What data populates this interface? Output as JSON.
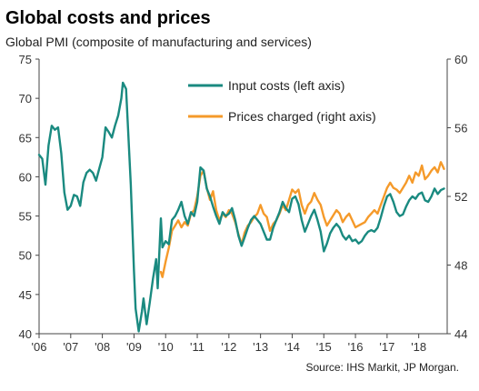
{
  "chart_data": {
    "type": "line",
    "title": "Global costs and prices",
    "subtitle": "Global PMI (composite of manufacturing and services)",
    "source": "Source: IHS Markit, JP Morgan.",
    "x_range": [
      2006.0,
      2018.9
    ],
    "x_tick_labels": [
      {
        "year": 2006,
        "label": "'06"
      },
      {
        "year": 2007,
        "label": "'07"
      },
      {
        "year": 2008,
        "label": "'08"
      },
      {
        "year": 2009,
        "label": "'09"
      },
      {
        "year": 2010,
        "label": "'10"
      },
      {
        "year": 2011,
        "label": "'11"
      },
      {
        "year": 2012,
        "label": "'12"
      },
      {
        "year": 2013,
        "label": "'13"
      },
      {
        "year": 2014,
        "label": "'14"
      },
      {
        "year": 2015,
        "label": "'15"
      },
      {
        "year": 2016,
        "label": "'16"
      },
      {
        "year": 2017,
        "label": "'17"
      },
      {
        "year": 2018,
        "label": "'18"
      }
    ],
    "y_left": {
      "range": [
        40,
        75
      ],
      "ticks": [
        40,
        45,
        50,
        55,
        60,
        65,
        70,
        75
      ],
      "tick_labels": [
        "40",
        "45",
        "50",
        "55",
        "60",
        "65",
        "70",
        "75"
      ]
    },
    "y_right": {
      "range": [
        44,
        60
      ],
      "ticks": [
        44,
        48,
        52,
        56,
        60
      ],
      "tick_labels": [
        "44",
        "48",
        "52",
        "56",
        "60"
      ]
    },
    "grid": false,
    "legend_position": "top-right",
    "series": [
      {
        "name": "Input costs (left axis)",
        "axis": "left",
        "color": "#1a8a80",
        "points": [
          [
            2006.0,
            62.8
          ],
          [
            2006.1,
            62.3
          ],
          [
            2006.2,
            59.0
          ],
          [
            2006.3,
            64.0
          ],
          [
            2006.4,
            66.5
          ],
          [
            2006.5,
            66.0
          ],
          [
            2006.6,
            66.3
          ],
          [
            2006.7,
            63.0
          ],
          [
            2006.8,
            58.0
          ],
          [
            2006.9,
            55.8
          ],
          [
            2007.0,
            56.3
          ],
          [
            2007.1,
            57.7
          ],
          [
            2007.2,
            57.5
          ],
          [
            2007.3,
            56.3
          ],
          [
            2007.4,
            59.3
          ],
          [
            2007.5,
            60.5
          ],
          [
            2007.6,
            60.9
          ],
          [
            2007.7,
            60.5
          ],
          [
            2007.8,
            59.5
          ],
          [
            2007.9,
            61.0
          ],
          [
            2008.0,
            62.5
          ],
          [
            2008.1,
            66.3
          ],
          [
            2008.2,
            65.7
          ],
          [
            2008.3,
            65.0
          ],
          [
            2008.4,
            66.5
          ],
          [
            2008.5,
            67.8
          ],
          [
            2008.6,
            70.0
          ],
          [
            2008.65,
            72.0
          ],
          [
            2008.75,
            71.2
          ],
          [
            2008.8,
            67.0
          ],
          [
            2008.9,
            59.0
          ],
          [
            2009.0,
            48.0
          ],
          [
            2009.05,
            43.2
          ],
          [
            2009.15,
            40.3
          ],
          [
            2009.25,
            42.8
          ],
          [
            2009.3,
            44.5
          ],
          [
            2009.4,
            41.2
          ],
          [
            2009.5,
            44.0
          ],
          [
            2009.6,
            47.0
          ],
          [
            2009.7,
            49.5
          ],
          [
            2009.75,
            45.8
          ],
          [
            2009.85,
            54.7
          ],
          [
            2009.9,
            51.0
          ],
          [
            2010.0,
            51.8
          ],
          [
            2010.1,
            51.4
          ],
          [
            2010.2,
            54.5
          ],
          [
            2010.3,
            55.0
          ],
          [
            2010.4,
            55.8
          ],
          [
            2010.5,
            56.8
          ],
          [
            2010.6,
            55.0
          ],
          [
            2010.7,
            54.0
          ],
          [
            2010.8,
            55.5
          ],
          [
            2010.9,
            55.0
          ],
          [
            2011.0,
            56.8
          ],
          [
            2011.1,
            61.2
          ],
          [
            2011.2,
            60.8
          ],
          [
            2011.3,
            58.5
          ],
          [
            2011.4,
            57.5
          ],
          [
            2011.5,
            56.2
          ],
          [
            2011.6,
            55.0
          ],
          [
            2011.7,
            54.0
          ],
          [
            2011.8,
            55.5
          ],
          [
            2011.9,
            55.0
          ],
          [
            2012.0,
            55.3
          ],
          [
            2012.1,
            56.0
          ],
          [
            2012.2,
            54.5
          ],
          [
            2012.3,
            52.5
          ],
          [
            2012.4,
            51.2
          ],
          [
            2012.5,
            52.3
          ],
          [
            2012.6,
            53.5
          ],
          [
            2012.7,
            54.5
          ],
          [
            2012.8,
            55.0
          ],
          [
            2012.9,
            54.5
          ],
          [
            2013.0,
            54.0
          ],
          [
            2013.1,
            53.0
          ],
          [
            2013.2,
            52.0
          ],
          [
            2013.3,
            52.0
          ],
          [
            2013.4,
            53.5
          ],
          [
            2013.5,
            54.5
          ],
          [
            2013.6,
            55.5
          ],
          [
            2013.7,
            56.8
          ],
          [
            2013.8,
            56.0
          ],
          [
            2013.9,
            55.5
          ],
          [
            2014.0,
            57.2
          ],
          [
            2014.1,
            57.5
          ],
          [
            2014.2,
            56.5
          ],
          [
            2014.3,
            54.5
          ],
          [
            2014.4,
            53.0
          ],
          [
            2014.5,
            54.0
          ],
          [
            2014.6,
            55.0
          ],
          [
            2014.7,
            55.8
          ],
          [
            2014.8,
            54.5
          ],
          [
            2014.9,
            53.0
          ],
          [
            2015.0,
            50.5
          ],
          [
            2015.1,
            51.5
          ],
          [
            2015.2,
            52.8
          ],
          [
            2015.3,
            53.5
          ],
          [
            2015.4,
            54.0
          ],
          [
            2015.5,
            53.5
          ],
          [
            2015.6,
            52.5
          ],
          [
            2015.7,
            52.0
          ],
          [
            2015.8,
            52.5
          ],
          [
            2015.9,
            51.8
          ],
          [
            2016.0,
            52.0
          ],
          [
            2016.1,
            51.5
          ],
          [
            2016.2,
            51.8
          ],
          [
            2016.3,
            52.5
          ],
          [
            2016.4,
            53.0
          ],
          [
            2016.5,
            53.2
          ],
          [
            2016.6,
            53.0
          ],
          [
            2016.7,
            53.5
          ],
          [
            2016.8,
            54.8
          ],
          [
            2016.9,
            56.3
          ],
          [
            2017.0,
            57.5
          ],
          [
            2017.1,
            57.8
          ],
          [
            2017.2,
            56.8
          ],
          [
            2017.3,
            55.5
          ],
          [
            2017.4,
            55.0
          ],
          [
            2017.5,
            55.2
          ],
          [
            2017.6,
            56.2
          ],
          [
            2017.7,
            57.0
          ],
          [
            2017.8,
            57.5
          ],
          [
            2017.9,
            57.2
          ],
          [
            2018.0,
            57.8
          ],
          [
            2018.1,
            58.0
          ],
          [
            2018.2,
            57.0
          ],
          [
            2018.3,
            56.8
          ],
          [
            2018.4,
            57.5
          ],
          [
            2018.5,
            58.5
          ],
          [
            2018.6,
            57.8
          ],
          [
            2018.7,
            58.3
          ],
          [
            2018.8,
            58.5
          ]
        ]
      },
      {
        "name": "Prices charged (right axis)",
        "axis": "right",
        "color": "#f59a2a",
        "points": [
          [
            2009.85,
            47.6
          ],
          [
            2009.9,
            47.3
          ],
          [
            2010.0,
            48.2
          ],
          [
            2010.1,
            49.0
          ],
          [
            2010.2,
            50.0
          ],
          [
            2010.3,
            50.3
          ],
          [
            2010.4,
            50.6
          ],
          [
            2010.5,
            50.2
          ],
          [
            2010.6,
            50.5
          ],
          [
            2010.7,
            50.3
          ],
          [
            2010.8,
            51.0
          ],
          [
            2010.9,
            51.2
          ],
          [
            2011.0,
            52.0
          ],
          [
            2011.1,
            53.2
          ],
          [
            2011.2,
            53.5
          ],
          [
            2011.3,
            52.5
          ],
          [
            2011.4,
            51.8
          ],
          [
            2011.5,
            52.3
          ],
          [
            2011.6,
            51.2
          ],
          [
            2011.7,
            50.6
          ],
          [
            2011.8,
            51.0
          ],
          [
            2011.9,
            50.8
          ],
          [
            2012.0,
            51.2
          ],
          [
            2012.1,
            51.0
          ],
          [
            2012.2,
            50.5
          ],
          [
            2012.3,
            49.8
          ],
          [
            2012.4,
            49.2
          ],
          [
            2012.5,
            49.9
          ],
          [
            2012.6,
            50.3
          ],
          [
            2012.7,
            50.5
          ],
          [
            2012.8,
            50.8
          ],
          [
            2012.9,
            51.0
          ],
          [
            2013.0,
            51.5
          ],
          [
            2013.1,
            51.0
          ],
          [
            2013.2,
            50.8
          ],
          [
            2013.3,
            50.0
          ],
          [
            2013.4,
            50.4
          ],
          [
            2013.5,
            50.6
          ],
          [
            2013.6,
            51.0
          ],
          [
            2013.7,
            51.5
          ],
          [
            2013.8,
            51.2
          ],
          [
            2013.9,
            51.8
          ],
          [
            2014.0,
            52.4
          ],
          [
            2014.1,
            52.2
          ],
          [
            2014.2,
            52.4
          ],
          [
            2014.3,
            51.5
          ],
          [
            2014.4,
            51.0
          ],
          [
            2014.5,
            51.5
          ],
          [
            2014.6,
            51.7
          ],
          [
            2014.7,
            52.2
          ],
          [
            2014.8,
            51.8
          ],
          [
            2014.9,
            51.5
          ],
          [
            2015.0,
            50.8
          ],
          [
            2015.1,
            50.3
          ],
          [
            2015.2,
            50.6
          ],
          [
            2015.3,
            50.9
          ],
          [
            2015.4,
            51.2
          ],
          [
            2015.5,
            51.0
          ],
          [
            2015.6,
            50.5
          ],
          [
            2015.7,
            50.8
          ],
          [
            2015.8,
            51.0
          ],
          [
            2015.9,
            50.6
          ],
          [
            2016.0,
            50.2
          ],
          [
            2016.1,
            50.3
          ],
          [
            2016.2,
            50.4
          ],
          [
            2016.3,
            50.5
          ],
          [
            2016.4,
            50.8
          ],
          [
            2016.5,
            51.0
          ],
          [
            2016.6,
            51.2
          ],
          [
            2016.7,
            51.0
          ],
          [
            2016.8,
            51.5
          ],
          [
            2016.9,
            52.0
          ],
          [
            2017.0,
            52.5
          ],
          [
            2017.1,
            52.8
          ],
          [
            2017.2,
            52.5
          ],
          [
            2017.3,
            52.4
          ],
          [
            2017.4,
            52.2
          ],
          [
            2017.5,
            52.5
          ],
          [
            2017.6,
            52.8
          ],
          [
            2017.7,
            53.2
          ],
          [
            2017.8,
            52.8
          ],
          [
            2017.9,
            53.4
          ],
          [
            2018.0,
            53.2
          ],
          [
            2018.1,
            53.8
          ],
          [
            2018.2,
            53.0
          ],
          [
            2018.3,
            53.2
          ],
          [
            2018.4,
            53.5
          ],
          [
            2018.5,
            53.7
          ],
          [
            2018.6,
            53.4
          ],
          [
            2018.7,
            54.0
          ],
          [
            2018.75,
            53.8
          ],
          [
            2018.8,
            53.6
          ]
        ]
      }
    ]
  }
}
